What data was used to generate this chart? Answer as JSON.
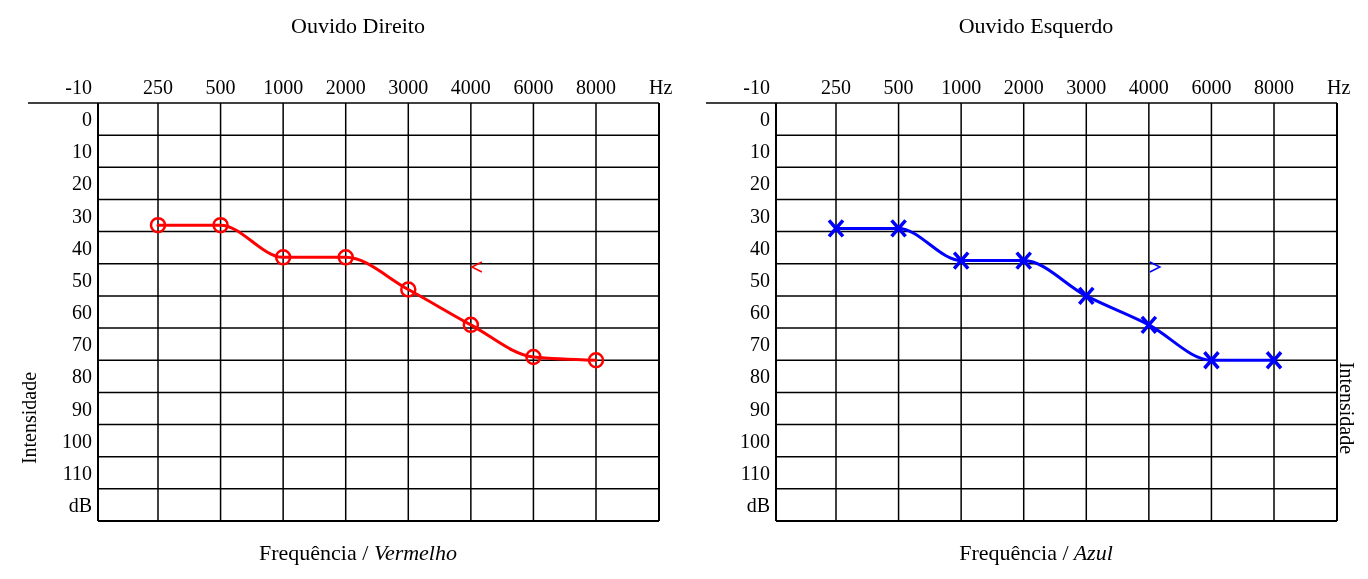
{
  "chart_data": [
    {
      "type": "line",
      "title": "Ouvido Direito",
      "xlabel": "Frequência / Vermelho",
      "ylabel": "Intensidade",
      "categories": [
        "250",
        "500",
        "1000",
        "2000",
        "3000",
        "4000",
        "6000",
        "8000"
      ],
      "series": [
        {
          "color": "#ff0000",
          "marker": "circle",
          "values": [
            28,
            28,
            38,
            38,
            48,
            59,
            69,
            70
          ]
        },
        {
          "type": "scatter",
          "color": "#ff0000",
          "values": [
            null,
            null,
            null,
            null,
            null,
            41,
            null,
            null
          ]
        }
      ],
      "ylim": [
        120,
        -10
      ],
      "yticks": [
        -10,
        0,
        10,
        20,
        30,
        40,
        50,
        60,
        70,
        80,
        90,
        100,
        110,
        {
          "value": 120,
          "label": "dB"
        }
      ],
      "grid": true,
      "annotations": [
        "Hz"
      ]
    },
    {
      "type": "line",
      "title": "Ouvido Esquerdo",
      "xlabel": "Frequência / Azul",
      "ylabel": "Intensidade",
      "categories": [
        "250",
        "500",
        "1000",
        "2000",
        "3000",
        "4000",
        "6000",
        "8000"
      ],
      "series": [
        {
          "color": "#0000ff",
          "marker": "cross",
          "values": [
            29,
            29,
            39,
            39,
            50,
            59,
            70,
            70
          ]
        },
        {
          "type": "scatter",
          "color": "#0000ff",
          "values": [
            null,
            null,
            null,
            null,
            null,
            41,
            null,
            null
          ]
        }
      ],
      "ylim": [
        120,
        -10
      ],
      "yticks": [
        -10,
        0,
        10,
        20,
        30,
        40,
        50,
        60,
        70,
        80,
        90,
        100,
        110,
        {
          "value": 120,
          "label": "dB"
        }
      ],
      "grid": true,
      "annotations": [
        "Hz"
      ]
    }
  ]
}
